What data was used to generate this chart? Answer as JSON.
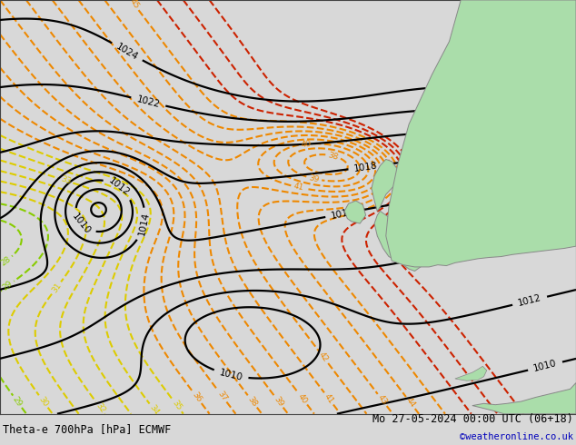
{
  "title_left": "Theta-e 700hPa [hPa] ECMWF",
  "title_right": "Mo 27-05-2024 00:00 UTC (06+18)",
  "watermark": "©weatheronline.co.uk",
  "bg_color": "#d8d8d8",
  "map_bg": "#d8d8d8",
  "land_color": "#aaddaa",
  "coast_color": "#888888",
  "text_color_black": "#000000",
  "text_color_blue": "#0000bb",
  "pressure_color": "#000000",
  "theta_green_color": "#88cc00",
  "theta_yellow_color": "#ddcc00",
  "theta_cyan_color": "#00bbbb",
  "theta_orange_color": "#ee8800",
  "theta_red_color": "#cc2200",
  "pressure_linewidth": 1.6,
  "theta_linewidth": 1.5,
  "figsize": [
    6.34,
    4.9
  ],
  "dpi": 100
}
